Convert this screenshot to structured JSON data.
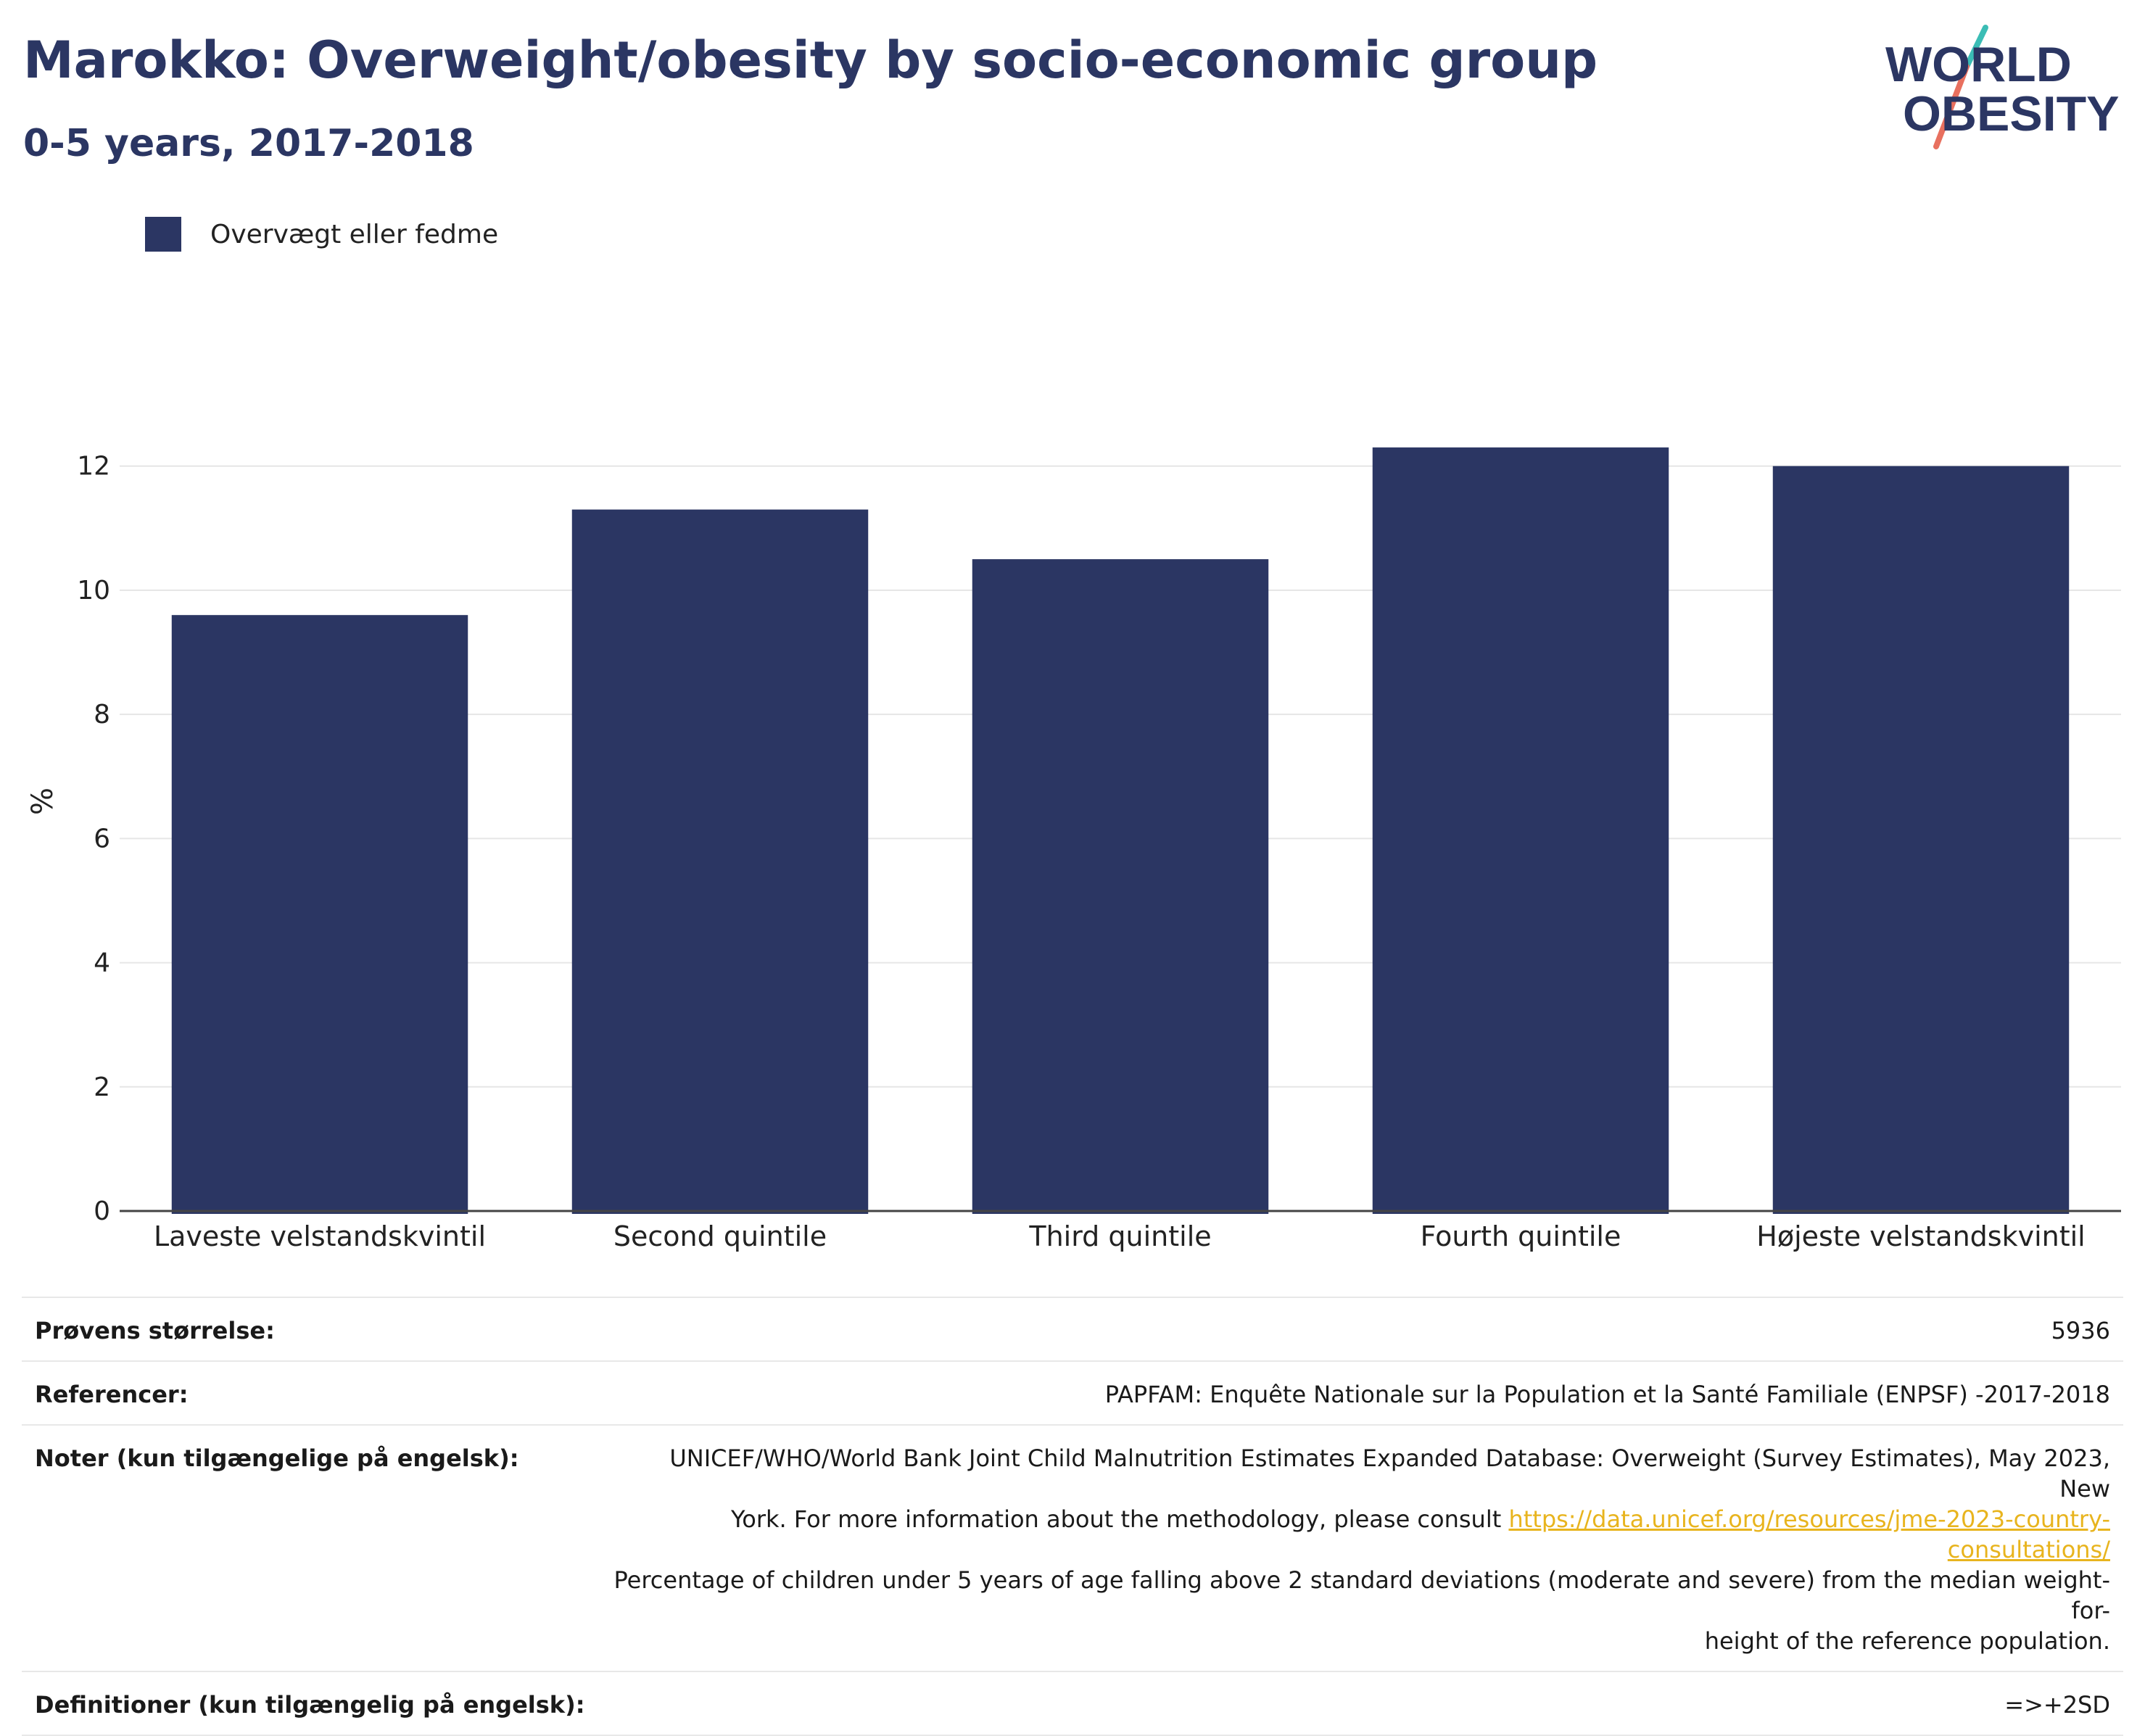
{
  "header": {
    "title": "Marokko: Overweight/obesity by socio-economic group",
    "subtitle": "0-5 years, 2017-2018"
  },
  "logo": {
    "line1": "WORLD",
    "line2": "OBESITY"
  },
  "colors": {
    "bar": "#2b3663",
    "title": "#2b3663",
    "link": "#e8b41e",
    "grid": "#e6e6e6"
  },
  "chart_data": {
    "type": "bar",
    "categories": [
      "Laveste velstandskvintil",
      "Second quintile",
      "Third quintile",
      "Fourth quintile",
      "Højeste velstandskvintil"
    ],
    "series": [
      {
        "name": "Overvægt eller fedme",
        "values": [
          9.6,
          11.3,
          10.5,
          12.3,
          12.0
        ]
      }
    ],
    "ylabel": "%",
    "xlabel": "",
    "ylim": [
      0,
      13.2
    ],
    "yticks": [
      0,
      2,
      4,
      6,
      8,
      10,
      12
    ],
    "grid": true,
    "legend": "top-left"
  },
  "info": {
    "sample_label": "Prøvens størrelse:",
    "sample_value": "5936",
    "refs_label": "Referencer:",
    "refs_value": "PAPFAM: Enquête Nationale sur la Population et la Santé Familiale (ENPSF) -2017-2018",
    "notes_label": "Noter (kun tilgængelige på engelsk):",
    "notes_line1": "UNICEF/WHO/World Bank Joint Child Malnutrition Estimates Expanded Database: Overweight (Survey Estimates), May 2023, New",
    "notes_line2": "York. For more information about the methodology, please consult ",
    "notes_link": "https://data.unicef.org/resources/jme-2023-country-consultations/",
    "notes_line3": "Percentage of children under 5 years of age falling above 2 standard deviations (moderate and severe) from the median weight-for-",
    "notes_line4": "height of the reference population.",
    "defs_label": "Definitioner (kun tilgængelig på engelsk):",
    "defs_value": "=>+2SD"
  }
}
